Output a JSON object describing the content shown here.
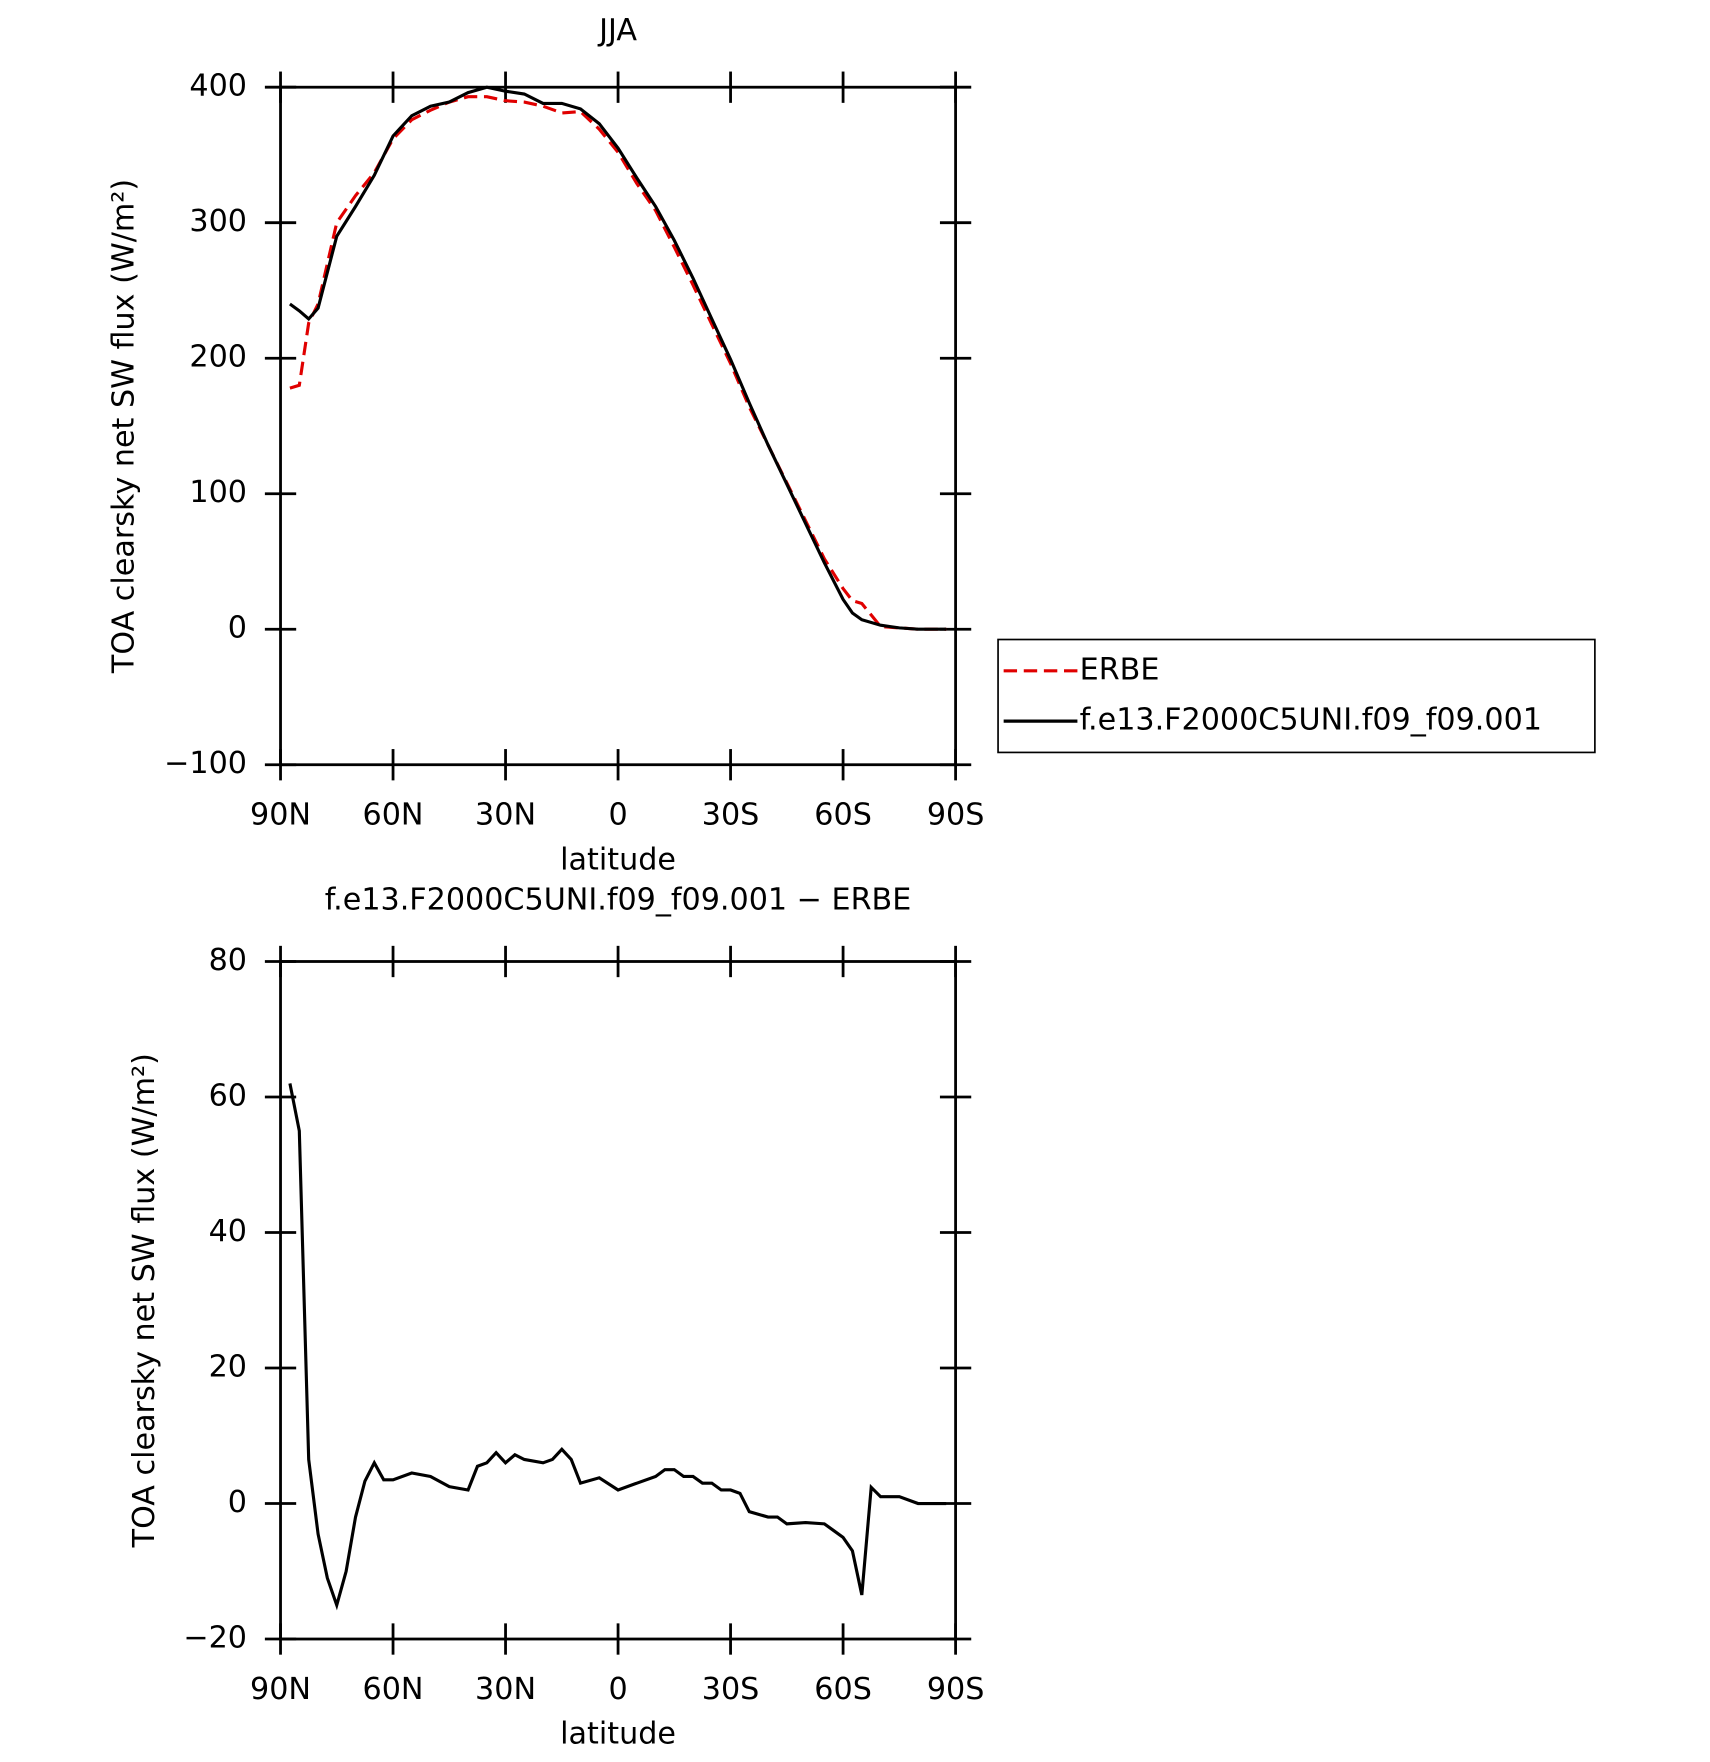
{
  "chart_data": [
    {
      "type": "line",
      "title": "JJA",
      "xlabel": "latitude",
      "ylabel": "TOA clearsky net SW flux (W/m²)",
      "x": [
        87.5,
        85,
        82.5,
        80,
        75,
        70,
        65,
        60,
        55,
        50,
        45,
        40,
        35,
        30,
        25,
        20,
        15,
        10,
        5,
        0,
        -5,
        -10,
        -15,
        -20,
        -25,
        -30,
        -35,
        -40,
        -45,
        -50,
        -55,
        -60,
        -62.5,
        -65,
        -70,
        -75,
        -80,
        -85,
        -87.5
      ],
      "series": [
        {
          "name": "ERBE",
          "color": "#e00000",
          "style": "dashed",
          "values": [
            178,
            180,
            226,
            240,
            300,
            320,
            337,
            362,
            376,
            383,
            389,
            393,
            393,
            390,
            389,
            386,
            381,
            382,
            369,
            352,
            329,
            309,
            282,
            254,
            225,
            196,
            164,
            136,
            108,
            80,
            52,
            30,
            21,
            19,
            2,
            1,
            0,
            0,
            0
          ]
        },
        {
          "name": "f.e13.F2000C5UNI.f09_f09.001",
          "color": "#000000",
          "style": "solid",
          "values": [
            240,
            235,
            229,
            237,
            290,
            312,
            335,
            364,
            379,
            386,
            389,
            396,
            400,
            397,
            395,
            388,
            388,
            384,
            373,
            355,
            333,
            312,
            287,
            259,
            229,
            199,
            167,
            136,
            107,
            78,
            49,
            22,
            12,
            7,
            3,
            1,
            0,
            0,
            0
          ]
        }
      ],
      "xlim": [
        90,
        -90
      ],
      "xticks": [
        {
          "value": 90,
          "label": "90N"
        },
        {
          "value": 60,
          "label": "60N"
        },
        {
          "value": 30,
          "label": "30N"
        },
        0,
        {
          "value": -30,
          "label": "30S"
        },
        {
          "value": -60,
          "label": "60S"
        },
        {
          "value": -90,
          "label": "90S"
        }
      ],
      "ylim": [
        -100,
        400
      ],
      "yticks": [
        {
          "value": -100,
          "label": "−100"
        },
        0,
        100,
        200,
        300,
        400
      ],
      "legend": "outside-right"
    },
    {
      "type": "line",
      "title": "f.e13.F2000C5UNI.f09_f09.001 − ERBE",
      "xlabel": "latitude",
      "ylabel": "TOA clearsky net SW flux (W/m²)",
      "x": [
        87.5,
        85,
        82.5,
        80,
        77.5,
        75,
        72.5,
        70,
        67.5,
        65,
        62.5,
        60,
        55,
        50,
        45,
        40,
        37.5,
        35,
        32.5,
        30,
        27.5,
        25,
        20,
        17.5,
        15,
        12.5,
        10,
        5,
        0,
        -5,
        -10,
        -12.5,
        -15,
        -17.5,
        -20,
        -22.5,
        -25,
        -27.5,
        -30,
        -32.5,
        -35,
        -40,
        -42.5,
        -45,
        -50,
        -55,
        -57.5,
        -60,
        -62.5,
        -65,
        -67.5,
        -70,
        -75,
        -80,
        -85,
        -87.5
      ],
      "series": [
        {
          "color": "#000000",
          "style": "solid",
          "values": [
            62,
            55,
            6.5,
            -4.5,
            -11,
            -15,
            -10,
            -2,
            3.3,
            6,
            3.5,
            3.5,
            4.5,
            4,
            2.5,
            2,
            5.5,
            6,
            7.5,
            6,
            7.2,
            6.5,
            6,
            6.5,
            8,
            6.5,
            3,
            3.8,
            2,
            3,
            4,
            5,
            5,
            4,
            4,
            3,
            3,
            2,
            2,
            1.5,
            -1.2,
            -2,
            -2,
            -3,
            -2.8,
            -3,
            -4,
            -5,
            -7,
            -13.5,
            2.4,
            1,
            1,
            0,
            0,
            0
          ]
        }
      ],
      "xlim": [
        90,
        -90
      ],
      "xticks": [
        {
          "value": 90,
          "label": "90N"
        },
        {
          "value": 60,
          "label": "60N"
        },
        {
          "value": 30,
          "label": "30N"
        },
        0,
        {
          "value": -30,
          "label": "30S"
        },
        {
          "value": -60,
          "label": "60S"
        },
        {
          "value": -90,
          "label": "90S"
        }
      ],
      "ylim": [
        -20,
        80
      ],
      "yticks": [
        {
          "value": -20,
          "label": "−20"
        },
        0,
        20,
        40,
        60,
        80
      ]
    }
  ]
}
